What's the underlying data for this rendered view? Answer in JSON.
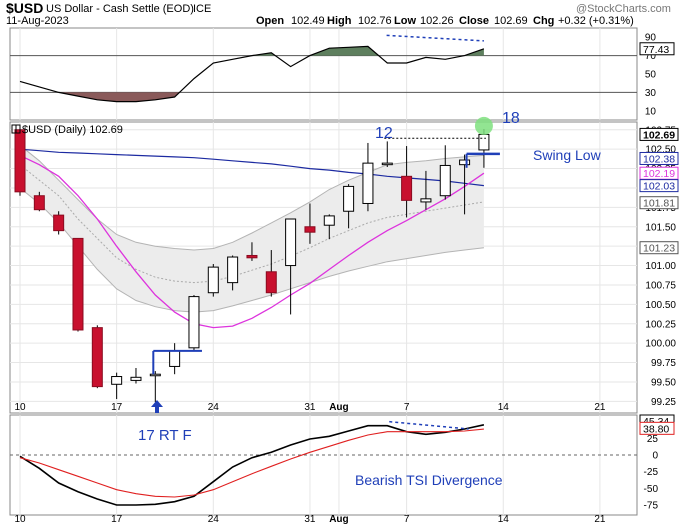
{
  "header": {
    "symbol": "$USD",
    "name": "US Dollar - Cash Settle (EOD)",
    "exchange": "ICE",
    "date": "11-Aug-2023",
    "watermark": "@StockCharts.com",
    "open_label": "Open",
    "open": "102.49",
    "high_label": "High",
    "high": "102.76",
    "low_label": "Low",
    "low": "102.26",
    "close_label": "Close",
    "close": "102.69",
    "chg_label": "Chg",
    "chg": "+0.32 (+0.31%)"
  },
  "price_panel": {
    "legend": "$USD (Daily) 102.69",
    "badges": [
      {
        "text": "102.69",
        "color": "#000000",
        "bold": true,
        "y": 102.69
      },
      {
        "text": "102.38",
        "color": "#1c2aa1",
        "y": 102.38
      },
      {
        "text": "102.19",
        "color": "#dd33dd",
        "y": 102.19
      },
      {
        "text": "102.03",
        "color": "#1c2aa1",
        "y": 102.03
      },
      {
        "text": "101.81",
        "color": "#555555",
        "y": 101.81
      },
      {
        "text": "101.23",
        "color": "#555555",
        "y": 101.23
      }
    ],
    "annotations": {
      "label_12": "12",
      "label_18": "18",
      "swing_low": "Swing Low",
      "rt_f": "17 RT F"
    }
  },
  "rsi_panel": {
    "value_badge": "77.43",
    "axis_ticks": [
      "90",
      "70",
      "50",
      "30",
      "10"
    ]
  },
  "tsi_panel": {
    "badges": [
      "45.34",
      "38.80"
    ],
    "annotation": "Bearish TSI Divergence",
    "axis_ticks": [
      "50",
      "25",
      "0",
      "-25",
      "-50",
      "-75"
    ]
  },
  "x_axis": {
    "labels": [
      {
        "text": "10",
        "i": 0
      },
      {
        "text": "17",
        "i": 5
      },
      {
        "text": "24",
        "i": 10
      },
      {
        "text": "31",
        "i": 15
      },
      {
        "text": "Aug",
        "i": 16.5,
        "bold": true
      },
      {
        "text": "7",
        "i": 20
      },
      {
        "text": "14",
        "i": 25
      },
      {
        "text": "21",
        "i": 30
      }
    ]
  },
  "chart_data": {
    "type": "candlestick",
    "title": "$USD (Daily) 102.69",
    "ylim": [
      99.1,
      102.85
    ],
    "y_ticks": [
      "102.75",
      "102.50",
      "102.25",
      "102.00",
      "101.75",
      "101.50",
      "101.25",
      "101.00",
      "100.75",
      "100.50",
      "100.25",
      "100.00",
      "99.75",
      "99.50",
      "99.25"
    ],
    "candles": [
      {
        "date": "Jul 10",
        "open": 102.75,
        "high": 102.8,
        "low": 101.9,
        "close": 101.95
      },
      {
        "date": "Jul 11",
        "open": 101.9,
        "high": 101.95,
        "low": 101.7,
        "close": 101.72
      },
      {
        "date": "Jul 12",
        "open": 101.65,
        "high": 101.7,
        "low": 101.4,
        "close": 101.45
      },
      {
        "date": "Jul 13",
        "open": 101.35,
        "high": 101.35,
        "low": 100.15,
        "close": 100.17
      },
      {
        "date": "Jul 14",
        "open": 100.2,
        "high": 100.23,
        "low": 99.42,
        "close": 99.44
      },
      {
        "date": "Jul 17",
        "open": 99.47,
        "high": 99.62,
        "low": 99.28,
        "close": 99.57
      },
      {
        "date": "Jul 18",
        "open": 99.52,
        "high": 99.68,
        "low": 99.48,
        "close": 99.56
      },
      {
        "date": "Jul 19",
        "open": 99.58,
        "high": 99.64,
        "low": 99.24,
        "close": 99.6
      },
      {
        "date": "Jul 20",
        "open": 99.7,
        "high": 100.0,
        "low": 99.6,
        "close": 99.9
      },
      {
        "date": "Jul 21",
        "open": 99.94,
        "high": 100.62,
        "low": 99.9,
        "close": 100.6
      },
      {
        "date": "Jul 24",
        "open": 100.65,
        "high": 101.02,
        "low": 100.6,
        "close": 100.98
      },
      {
        "date": "Jul 25",
        "open": 100.78,
        "high": 101.13,
        "low": 100.68,
        "close": 101.11
      },
      {
        "date": "Jul 26",
        "open": 101.13,
        "high": 101.3,
        "low": 101.06,
        "close": 101.1
      },
      {
        "date": "Jul 27",
        "open": 100.92,
        "high": 101.2,
        "low": 100.6,
        "close": 100.65
      },
      {
        "date": "Jul 28",
        "open": 101.0,
        "high": 101.6,
        "low": 100.37,
        "close": 101.6
      },
      {
        "date": "Jul 31",
        "open": 101.5,
        "high": 101.8,
        "low": 101.28,
        "close": 101.43
      },
      {
        "date": "Aug 1",
        "open": 101.52,
        "high": 101.66,
        "low": 101.34,
        "close": 101.64
      },
      {
        "date": "Aug 2",
        "open": 101.7,
        "high": 102.05,
        "low": 101.48,
        "close": 102.02
      },
      {
        "date": "Aug 3",
        "open": 101.8,
        "high": 102.58,
        "low": 101.7,
        "close": 102.32
      },
      {
        "date": "Aug 4",
        "open": 102.3,
        "high": 102.6,
        "low": 102.27,
        "close": 102.32
      },
      {
        "date": "Aug 7",
        "open": 102.15,
        "high": 102.54,
        "low": 101.62,
        "close": 101.84
      },
      {
        "date": "Aug 8",
        "open": 101.82,
        "high": 102.22,
        "low": 101.72,
        "close": 101.86
      },
      {
        "date": "Aug 9",
        "open": 101.9,
        "high": 102.55,
        "low": 101.85,
        "close": 102.29
      },
      {
        "date": "Aug 10",
        "open": 102.3,
        "high": 102.43,
        "low": 101.66,
        "close": 102.36
      },
      {
        "date": "Aug 11",
        "open": 102.49,
        "high": 102.76,
        "low": 102.26,
        "close": 102.69
      }
    ],
    "series": [
      {
        "name": "Keltner upper",
        "values": [
          102.55,
          102.35,
          102.1,
          101.85,
          101.6,
          101.4,
          101.3,
          101.25,
          101.22,
          101.2,
          101.22,
          101.3,
          101.42,
          101.55,
          101.68,
          101.82,
          101.98,
          102.1,
          102.2,
          102.3,
          102.33,
          102.35,
          102.38,
          102.4,
          102.42
        ]
      },
      {
        "name": "Keltner mid",
        "values": [
          102.3,
          102.1,
          101.9,
          101.6,
          101.35,
          101.1,
          100.95,
          100.85,
          100.8,
          100.78,
          100.8,
          100.86,
          100.94,
          101.02,
          101.12,
          101.23,
          101.35,
          101.45,
          101.55,
          101.62,
          101.66,
          101.7,
          101.74,
          101.78,
          101.82
        ]
      },
      {
        "name": "Keltner lower",
        "values": [
          102.0,
          101.8,
          101.55,
          101.25,
          100.95,
          100.7,
          100.55,
          100.47,
          100.42,
          100.4,
          100.42,
          100.48,
          100.55,
          100.62,
          100.7,
          100.78,
          100.86,
          100.93,
          100.99,
          101.05,
          101.09,
          101.13,
          101.17,
          101.2,
          101.23
        ]
      },
      {
        "name": "MA 200",
        "values": [
          102.5,
          102.48,
          102.46,
          102.45,
          102.44,
          102.43,
          102.42,
          102.41,
          102.4,
          102.39,
          102.37,
          102.35,
          102.33,
          102.31,
          102.28,
          102.25,
          102.23,
          102.2,
          102.18,
          102.15,
          102.13,
          102.11,
          102.09,
          102.06,
          102.03
        ]
      },
      {
        "name": "EMA 20",
        "values": [
          102.42,
          102.3,
          102.15,
          101.9,
          101.6,
          101.25,
          100.92,
          100.62,
          100.4,
          100.25,
          100.2,
          100.22,
          100.32,
          100.46,
          100.62,
          100.77,
          100.95,
          101.13,
          101.3,
          101.45,
          101.58,
          101.72,
          101.86,
          102.02,
          102.19
        ]
      }
    ],
    "rsi": {
      "name": "RSI",
      "ylim": [
        0,
        100
      ],
      "values": [
        42,
        36,
        30,
        26,
        22,
        20,
        20,
        22,
        25,
        45,
        62,
        66,
        70,
        73,
        58,
        70,
        78,
        79,
        80,
        62,
        62,
        68,
        66,
        70,
        77.43
      ],
      "overbought": 70,
      "oversold": 30
    },
    "tsi": {
      "ylim": [
        -90,
        60
      ],
      "series": [
        {
          "name": "TSI",
          "values": [
            -2,
            -20,
            -42,
            -55,
            -66,
            -75,
            -75,
            -74,
            -70,
            -62,
            -40,
            -18,
            -4,
            4,
            15,
            24,
            28,
            36,
            44,
            44,
            35,
            31,
            34,
            39,
            45.34
          ]
        },
        {
          "name": "Signal",
          "values": [
            -4,
            -12,
            -22,
            -32,
            -42,
            -52,
            -58,
            -62,
            -63,
            -60,
            -52,
            -40,
            -28,
            -17,
            -6,
            4,
            13,
            22,
            30,
            35,
            35,
            35,
            35,
            36,
            38.8
          ]
        }
      ]
    }
  }
}
